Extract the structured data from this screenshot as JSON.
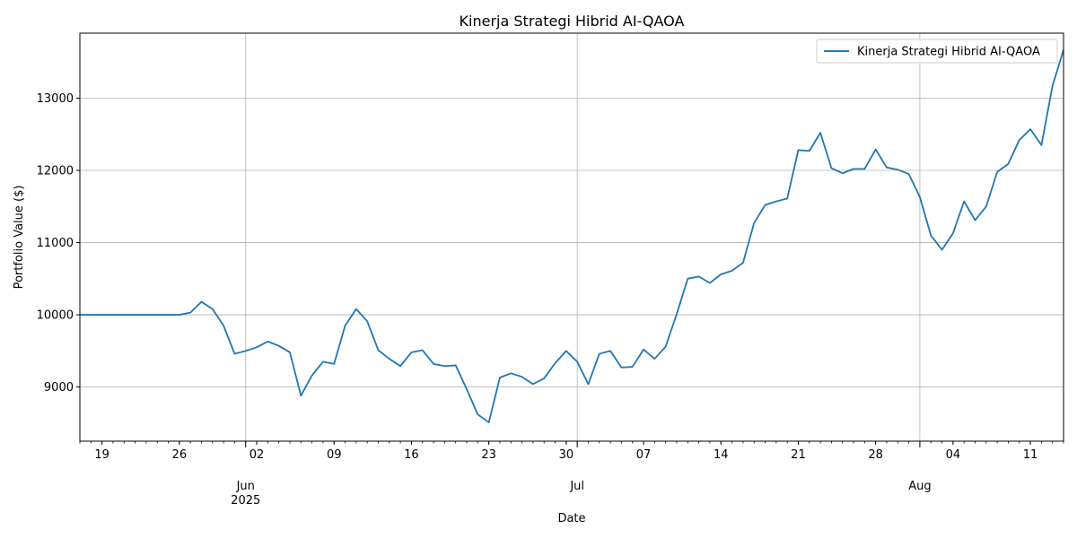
{
  "chart_data": {
    "type": "line",
    "title": "Kinerja Strategi Hibrid AI-QAOA",
    "xlabel": "Date",
    "ylabel": "Portfolio Value ($)",
    "legend_placement": "top-right",
    "grid": true,
    "x_range": [
      "2025-05-17",
      "2025-08-14"
    ],
    "ylim": [
      8250,
      13900
    ],
    "y_ticks": [
      9000,
      10000,
      11000,
      12000,
      13000
    ],
    "y_tick_labels": [
      "9000",
      "10000",
      "11000",
      "12000",
      "13000"
    ],
    "x_ticks_minor": [
      {
        "date": "2025-05-19",
        "label": "19"
      },
      {
        "date": "2025-05-26",
        "label": "26"
      },
      {
        "date": "2025-06-02",
        "label": "02"
      },
      {
        "date": "2025-06-09",
        "label": "09"
      },
      {
        "date": "2025-06-16",
        "label": "16"
      },
      {
        "date": "2025-06-23",
        "label": "23"
      },
      {
        "date": "2025-06-30",
        "label": "30"
      },
      {
        "date": "2025-07-07",
        "label": "07"
      },
      {
        "date": "2025-07-14",
        "label": "14"
      },
      {
        "date": "2025-07-21",
        "label": "21"
      },
      {
        "date": "2025-07-28",
        "label": "28"
      },
      {
        "date": "2025-08-04",
        "label": "04"
      },
      {
        "date": "2025-08-11",
        "label": "11"
      }
    ],
    "x_ticks_major": [
      {
        "date": "2025-06-01",
        "label": "Jun",
        "sublabel": "2025"
      },
      {
        "date": "2025-07-01",
        "label": "Jul",
        "sublabel": ""
      },
      {
        "date": "2025-08-01",
        "label": "Aug",
        "sublabel": ""
      }
    ],
    "series": [
      {
        "name": "Kinerja Strategi Hibrid AI-QAOA",
        "color": "#1f77b4",
        "x": [
          "2025-05-17",
          "2025-05-18",
          "2025-05-19",
          "2025-05-20",
          "2025-05-21",
          "2025-05-22",
          "2025-05-23",
          "2025-05-24",
          "2025-05-25",
          "2025-05-26",
          "2025-05-27",
          "2025-05-28",
          "2025-05-29",
          "2025-05-30",
          "2025-05-31",
          "2025-06-01",
          "2025-06-02",
          "2025-06-03",
          "2025-06-04",
          "2025-06-05",
          "2025-06-06",
          "2025-06-07",
          "2025-06-08",
          "2025-06-09",
          "2025-06-10",
          "2025-06-11",
          "2025-06-12",
          "2025-06-13",
          "2025-06-14",
          "2025-06-15",
          "2025-06-16",
          "2025-06-17",
          "2025-06-18",
          "2025-06-19",
          "2025-06-20",
          "2025-06-21",
          "2025-06-22",
          "2025-06-23",
          "2025-06-24",
          "2025-06-25",
          "2025-06-26",
          "2025-06-27",
          "2025-06-28",
          "2025-06-29",
          "2025-06-30",
          "2025-07-01",
          "2025-07-02",
          "2025-07-03",
          "2025-07-04",
          "2025-07-05",
          "2025-07-06",
          "2025-07-07",
          "2025-07-08",
          "2025-07-09",
          "2025-07-10",
          "2025-07-11",
          "2025-07-12",
          "2025-07-13",
          "2025-07-14",
          "2025-07-15",
          "2025-07-16",
          "2025-07-17",
          "2025-07-18",
          "2025-07-19",
          "2025-07-20",
          "2025-07-21",
          "2025-07-22",
          "2025-07-23",
          "2025-07-24",
          "2025-07-25",
          "2025-07-26",
          "2025-07-27",
          "2025-07-28",
          "2025-07-29",
          "2025-07-30",
          "2025-07-31",
          "2025-08-01",
          "2025-08-02",
          "2025-08-03",
          "2025-08-04",
          "2025-08-05",
          "2025-08-06",
          "2025-08-07",
          "2025-08-08",
          "2025-08-09",
          "2025-08-10",
          "2025-08-11",
          "2025-08-12",
          "2025-08-13",
          "2025-08-14"
        ],
        "values": [
          10000,
          10000,
          10000,
          10000,
          10000,
          10000,
          10000,
          10000,
          10000,
          10000,
          10030,
          10180,
          10080,
          9850,
          9460,
          9500,
          9550,
          9630,
          9570,
          9480,
          8880,
          9160,
          9350,
          9320,
          9850,
          10080,
          9910,
          9510,
          9390,
          9290,
          9480,
          9510,
          9320,
          9290,
          9300,
          8970,
          8620,
          8510,
          9130,
          9190,
          9140,
          9040,
          9120,
          9330,
          9500,
          9350,
          9040,
          9460,
          9500,
          9270,
          9280,
          9520,
          9390,
          9560,
          10010,
          10500,
          10530,
          10440,
          10560,
          10610,
          10720,
          11270,
          11520,
          11570,
          11610,
          12280,
          12270,
          12520,
          12030,
          11960,
          12020,
          12020,
          12290,
          12040,
          12010,
          11950,
          11630,
          11100,
          10900,
          11130,
          11570,
          11310,
          11500,
          11980,
          12090,
          12420,
          12570,
          12350,
          13170,
          13670
        ]
      }
    ]
  }
}
